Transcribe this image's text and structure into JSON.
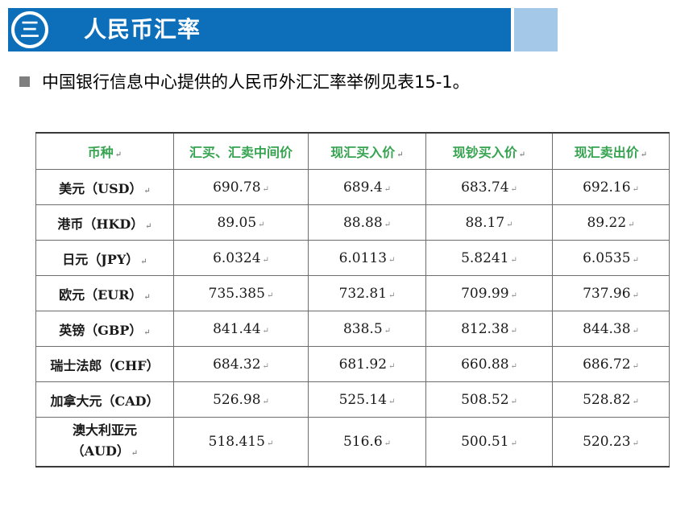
{
  "header": {
    "number": "三",
    "title": "人民币汇率",
    "colors": {
      "bar": "#0d6fba",
      "accent": "#a3c8e8"
    }
  },
  "intro": "中国银行信息中心提供的人民币外汇汇率举例见表15-1。",
  "table": {
    "columns": [
      "币种",
      "汇买、汇卖中间价",
      "现汇买入价",
      "现钞买入价",
      "现汇卖出价"
    ],
    "rows": [
      {
        "currency": "美元（USD）",
        "mid": "690.78",
        "buy_transfer": "689.4",
        "buy_cash": "683.74",
        "sell": "692.16"
      },
      {
        "currency": "港币（HKD）",
        "mid": "89.05",
        "buy_transfer": "88.88",
        "buy_cash": "88.17",
        "sell": "89.22"
      },
      {
        "currency": "日元（JPY）",
        "mid": "6.0324",
        "buy_transfer": "6.0113",
        "buy_cash": "5.8241",
        "sell": "6.0535"
      },
      {
        "currency": "欧元（EUR）",
        "mid": "735.385",
        "buy_transfer": "732.81",
        "buy_cash": "709.99",
        "sell": "737.96"
      },
      {
        "currency": "英镑（GBP）",
        "mid": "841.44",
        "buy_transfer": "838.5",
        "buy_cash": "812.38",
        "sell": "844.38"
      },
      {
        "currency": "瑞士法郎（CHF）",
        "mid": "684.32",
        "buy_transfer": "681.92",
        "buy_cash": "660.88",
        "sell": "686.72"
      },
      {
        "currency": "加拿大元（CAD）",
        "mid": "526.98",
        "buy_transfer": "525.14",
        "buy_cash": "508.52",
        "sell": "528.82"
      },
      {
        "currency_line1": "澳大利亚元",
        "currency_line2": "（AUD）",
        "mid": "518.415",
        "buy_transfer": "516.6",
        "buy_cash": "500.51",
        "sell": "520.23"
      }
    ],
    "header_color": "#35a34f"
  }
}
